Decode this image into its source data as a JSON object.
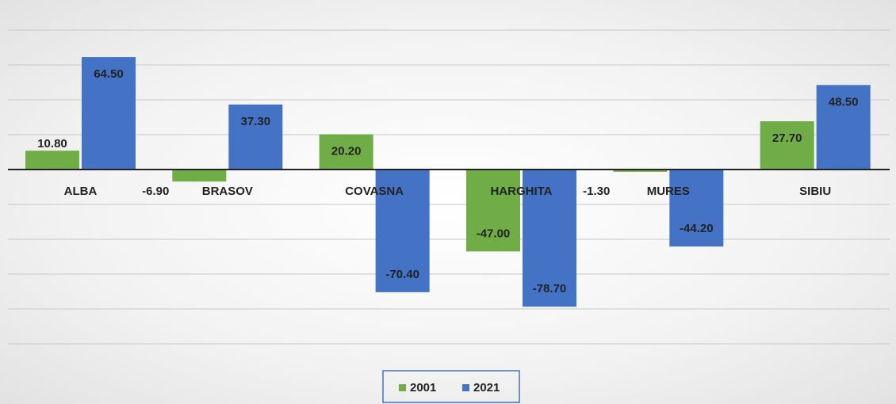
{
  "chart_data": {
    "type": "bar",
    "categories": [
      "ALBA",
      "BRASOV",
      "COVASNA",
      "HARGHITA",
      "MURES",
      "SIBIU"
    ],
    "series": [
      {
        "name": "2001",
        "color": "#70ad47",
        "values": [
          10.8,
          -6.9,
          20.2,
          -47.0,
          -1.3,
          27.7
        ],
        "value_labels": [
          "10.80",
          "-6.90",
          "20.20",
          "-47.00",
          "-1.30",
          "27.70"
        ]
      },
      {
        "name": "2021",
        "color": "#4472c4",
        "values": [
          64.5,
          37.3,
          -70.4,
          -78.7,
          -44.2,
          48.5
        ],
        "value_labels": [
          "64.50",
          "37.30",
          "-70.40",
          "-78.70",
          "-44.20",
          "48.50"
        ]
      }
    ],
    "ylim": [
      -100,
      80
    ],
    "yticks": [
      -100,
      -80,
      -60,
      -40,
      -20,
      0,
      20,
      40,
      60,
      80
    ],
    "grid": true,
    "legend": "bottom"
  }
}
